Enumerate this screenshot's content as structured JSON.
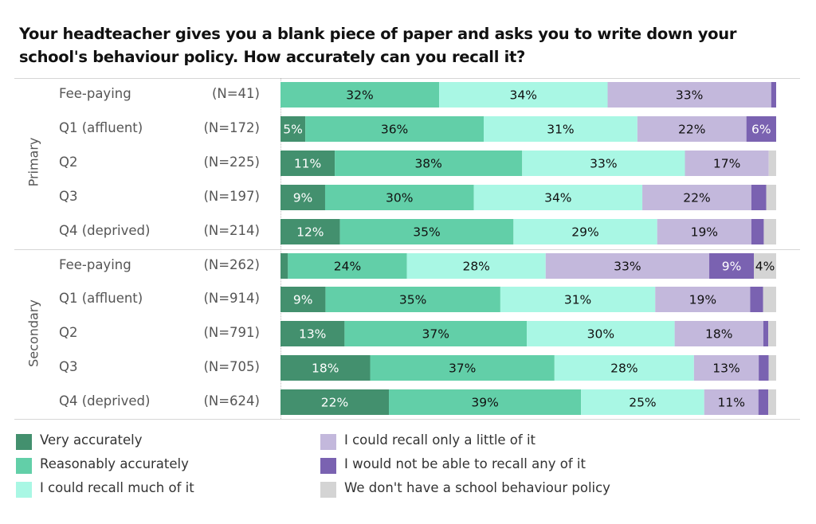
{
  "chart_data": {
    "type": "bar",
    "orientation": "horizontal",
    "stacked": "percent",
    "title": "Your headteacher gives you a blank piece of paper and asks you to write down your school's behaviour policy. How accurately can you recall it?",
    "xlabel": "",
    "ylabel": "",
    "xlim": [
      0,
      100
    ],
    "grid": false,
    "legend_position": "bottom",
    "series": [
      {
        "name": "Very accurately",
        "color": "#43906e",
        "label_color": "#ffffff"
      },
      {
        "name": "Reasonably accurately",
        "color": "#62cfa8",
        "label_color": "#111111"
      },
      {
        "name": "I could recall much of it",
        "color": "#a9f7e4",
        "label_color": "#111111"
      },
      {
        "name": "I could recall only a little of it",
        "color": "#c3b8dc",
        "label_color": "#111111"
      },
      {
        "name": "I would not be able to recall any of it",
        "color": "#7a62b1",
        "label_color": "#ffffff"
      },
      {
        "name": "We don't have a school behaviour policy",
        "color": "#d4d4d4",
        "label_color": "#111111"
      }
    ],
    "groups": [
      {
        "name": "Primary",
        "rows": [
          {
            "category": "Fee-paying",
            "n": "(N=41)",
            "values": [
              0,
              32,
              34,
              33,
              1,
              0
            ],
            "labels": [
              "",
              "32%",
              "34%",
              "33%",
              "",
              ""
            ]
          },
          {
            "category": "Q1 (affluent)",
            "n": "(N=172)",
            "values": [
              5,
              36,
              31,
              22,
              6,
              0
            ],
            "labels": [
              "5%",
              "36%",
              "31%",
              "22%",
              "6%",
              ""
            ]
          },
          {
            "category": "Q2",
            "n": "(N=225)",
            "values": [
              11,
              38,
              33,
              17,
              0,
              1.5
            ],
            "labels": [
              "11%",
              "38%",
              "33%",
              "17%",
              "",
              ""
            ]
          },
          {
            "category": "Q3",
            "n": "(N=197)",
            "values": [
              9,
              30,
              34,
              22,
              3,
              2
            ],
            "labels": [
              "9%",
              "30%",
              "34%",
              "22%",
              "",
              ""
            ]
          },
          {
            "category": "Q4 (deprived)",
            "n": "(N=214)",
            "values": [
              12,
              35,
              29,
              19,
              2.5,
              2.5
            ],
            "labels": [
              "12%",
              "35%",
              "29%",
              "19%",
              "",
              ""
            ]
          }
        ]
      },
      {
        "name": "Secondary",
        "rows": [
          {
            "category": "Fee-paying",
            "n": "(N=262)",
            "values": [
              1.5,
              24,
              28,
              33,
              9,
              4.5
            ],
            "labels": [
              "",
              "24%",
              "28%",
              "33%",
              "9%",
              "4%"
            ]
          },
          {
            "category": "Q1 (affluent)",
            "n": "(N=914)",
            "values": [
              9,
              35,
              31,
              19,
              2.6,
              2.6
            ],
            "labels": [
              "9%",
              "35%",
              "31%",
              "19%",
              "",
              ""
            ]
          },
          {
            "category": "Q2",
            "n": "(N=791)",
            "values": [
              13,
              37,
              30,
              18,
              1,
              1.6
            ],
            "labels": [
              "13%",
              "37%",
              "30%",
              "18%",
              "",
              ""
            ]
          },
          {
            "category": "Q3",
            "n": "(N=705)",
            "values": [
              18,
              37,
              28,
              13,
              2,
              1.5
            ],
            "labels": [
              "18%",
              "37%",
              "28%",
              "13%",
              "",
              ""
            ]
          },
          {
            "category": "Q4 (deprived)",
            "n": "(N=624)",
            "values": [
              22,
              39,
              25,
              11,
              2,
              1.6
            ],
            "labels": [
              "22%",
              "39%",
              "25%",
              "11%",
              "",
              ""
            ]
          }
        ]
      }
    ]
  }
}
